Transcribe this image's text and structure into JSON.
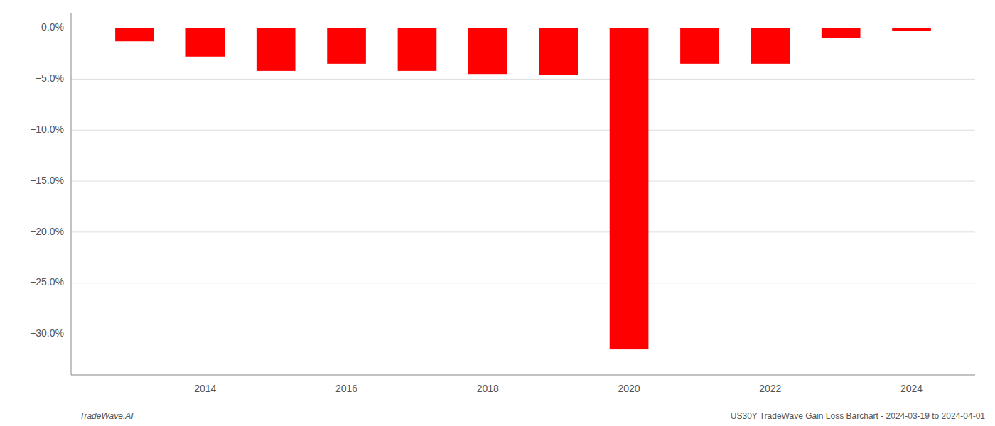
{
  "chart_data": {
    "type": "bar",
    "x": [
      2013,
      2014,
      2015,
      2016,
      2017,
      2018,
      2019,
      2020,
      2021,
      2022,
      2023,
      2024
    ],
    "values": [
      -1.3,
      -2.8,
      -4.2,
      -3.5,
      -4.2,
      -4.5,
      -4.6,
      -31.5,
      -3.5,
      -3.5,
      -1.0,
      -0.3
    ],
    "color": "#ff0000",
    "xlim": [
      2012.1,
      2024.9
    ],
    "xticks": [
      2014,
      2016,
      2018,
      2020,
      2022,
      2024
    ],
    "ylim": [
      -34,
      1.5
    ],
    "yticks": [
      {
        "value": 0.0,
        "label": "0.0%"
      },
      {
        "value": -5.0,
        "label": "−5.0%"
      },
      {
        "value": -10.0,
        "label": "−10.0%"
      },
      {
        "value": -15.0,
        "label": "−15.0%"
      },
      {
        "value": -20.0,
        "label": "−20.0%"
      },
      {
        "value": -25.0,
        "label": "−25.0%"
      },
      {
        "value": -30.0,
        "label": "−30.0%"
      }
    ],
    "grid": true,
    "annotations": [
      "TradeWave.AI",
      "US30Y TradeWave Gain Loss Barchart - 2024-03-19 to 2024-04-01"
    ]
  }
}
